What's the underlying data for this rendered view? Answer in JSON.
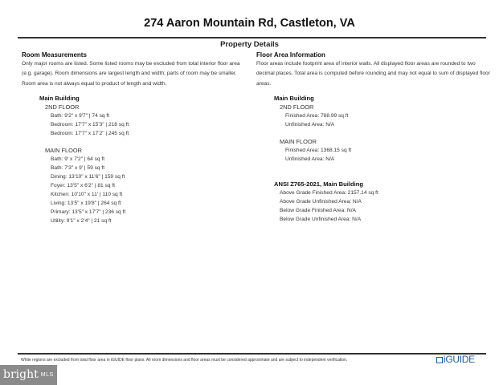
{
  "title": "274 Aaron Mountain Rd, Castleton, VA",
  "subtitle": "Property Details",
  "room_measurements": {
    "heading": "Room Measurements",
    "note": "Only major rooms are listed. Some listed rooms may be excluded from total interior floor area (e.g. garage). Room dimensions are largest length and width; parts of room may be smaller. Room area is not always equal to product of length and width.",
    "building": "Main Building",
    "floors": [
      {
        "name": "2ND FLOOR",
        "rooms": [
          "Bath: 9'2\" x 9'7\" | 74 sq ft",
          "Bedroom: 17'7\" x 15'3\" | 218 sq ft",
          "Bedroom: 17'7\" x 17'2\" | 245 sq ft"
        ]
      },
      {
        "name": "MAIN FLOOR",
        "rooms": [
          "Bath: 9' x 7'2\" | 64 sq ft",
          "Bath: 7'3\" x 9' | 59 sq ft",
          "Dining: 13'10\" x 11'6\" | 159 sq ft",
          "Foyer: 13'5\" x 6'2\" | 81 sq ft",
          "Kitchen: 10'10\" x 11' | 110 sq ft",
          "Living: 13'5\" x 19'8\" | 264 sq ft",
          "Primary: 13'5\" x 17'7\" | 236 sq ft",
          "Utility: 9'1\" x 2'4\" | 21 sq ft"
        ]
      }
    ]
  },
  "floor_area": {
    "heading": "Floor Area Information",
    "note": "Floor areas include footprint area of interior walls. All displayed floor areas are rounded to two decimal places. Total area is computed before rounding and may not equal to sum of displayed floor areas.",
    "building": "Main Building",
    "floors": [
      {
        "name": "2ND FLOOR",
        "items": [
          "Finished Area: 788.99 sq ft",
          "Unfinished Area: N/A"
        ]
      },
      {
        "name": "MAIN FLOOR",
        "items": [
          "Finished Area: 1368.15 sq ft",
          "Unfinished Area: N/A"
        ]
      }
    ],
    "ansi_heading": "ANSI Z765-2021, Main Building",
    "ansi_items": [
      "Above Grade Finished Area: 2157.14 sq ft",
      "Above Grade Unfinished Area: N/A",
      "Below Grade Finished Area: N/A",
      "Below Grade Unfinished Area: N/A"
    ]
  },
  "footer": {
    "disclaimer": "White regions are excluded from total floor area in iGUIDE floor plans. All room dimensions and floor areas must be considered approximate and are subject to independent verification.",
    "logo": "iGUIDE",
    "watermark_brand": "bright",
    "watermark_suffix": "MLS"
  },
  "colors": {
    "logo": "#1a5fa8",
    "watermark_bg": "#8a8a8a"
  }
}
